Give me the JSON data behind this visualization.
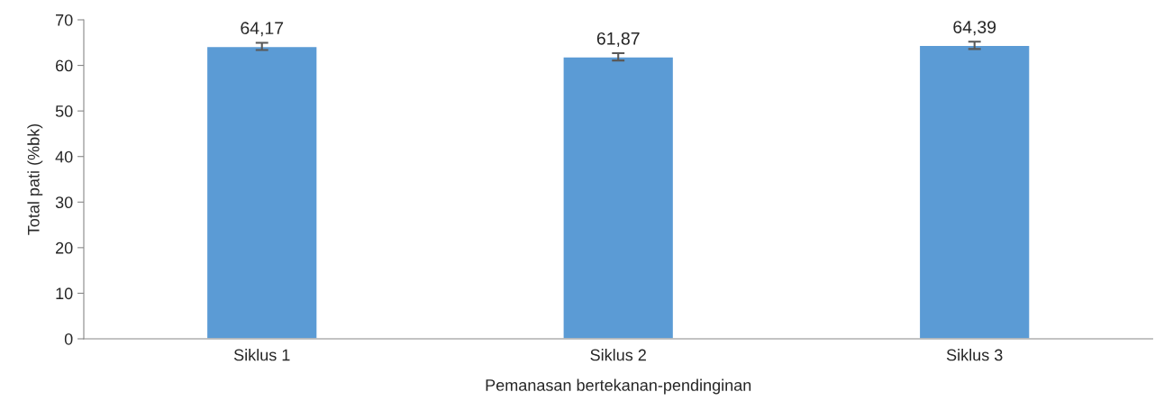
{
  "chart_data": {
    "type": "bar",
    "xlabel": "Pemanasan bertekanan-pendinginan",
    "ylabel": "Total pati (%bk)",
    "categories": [
      "Siklus 1",
      "Siklus 2",
      "Siklus 3"
    ],
    "values": [
      64.17,
      61.87,
      64.39
    ],
    "value_labels": [
      "64,17",
      "61,87",
      "64,39"
    ],
    "errors": [
      0.8,
      0.8,
      0.8
    ],
    "color": "#5b9bd5",
    "ylim": [
      0,
      70
    ],
    "yticks": [
      0,
      10,
      20,
      30,
      40,
      50,
      60,
      70
    ],
    "grid": false,
    "legend": false
  }
}
